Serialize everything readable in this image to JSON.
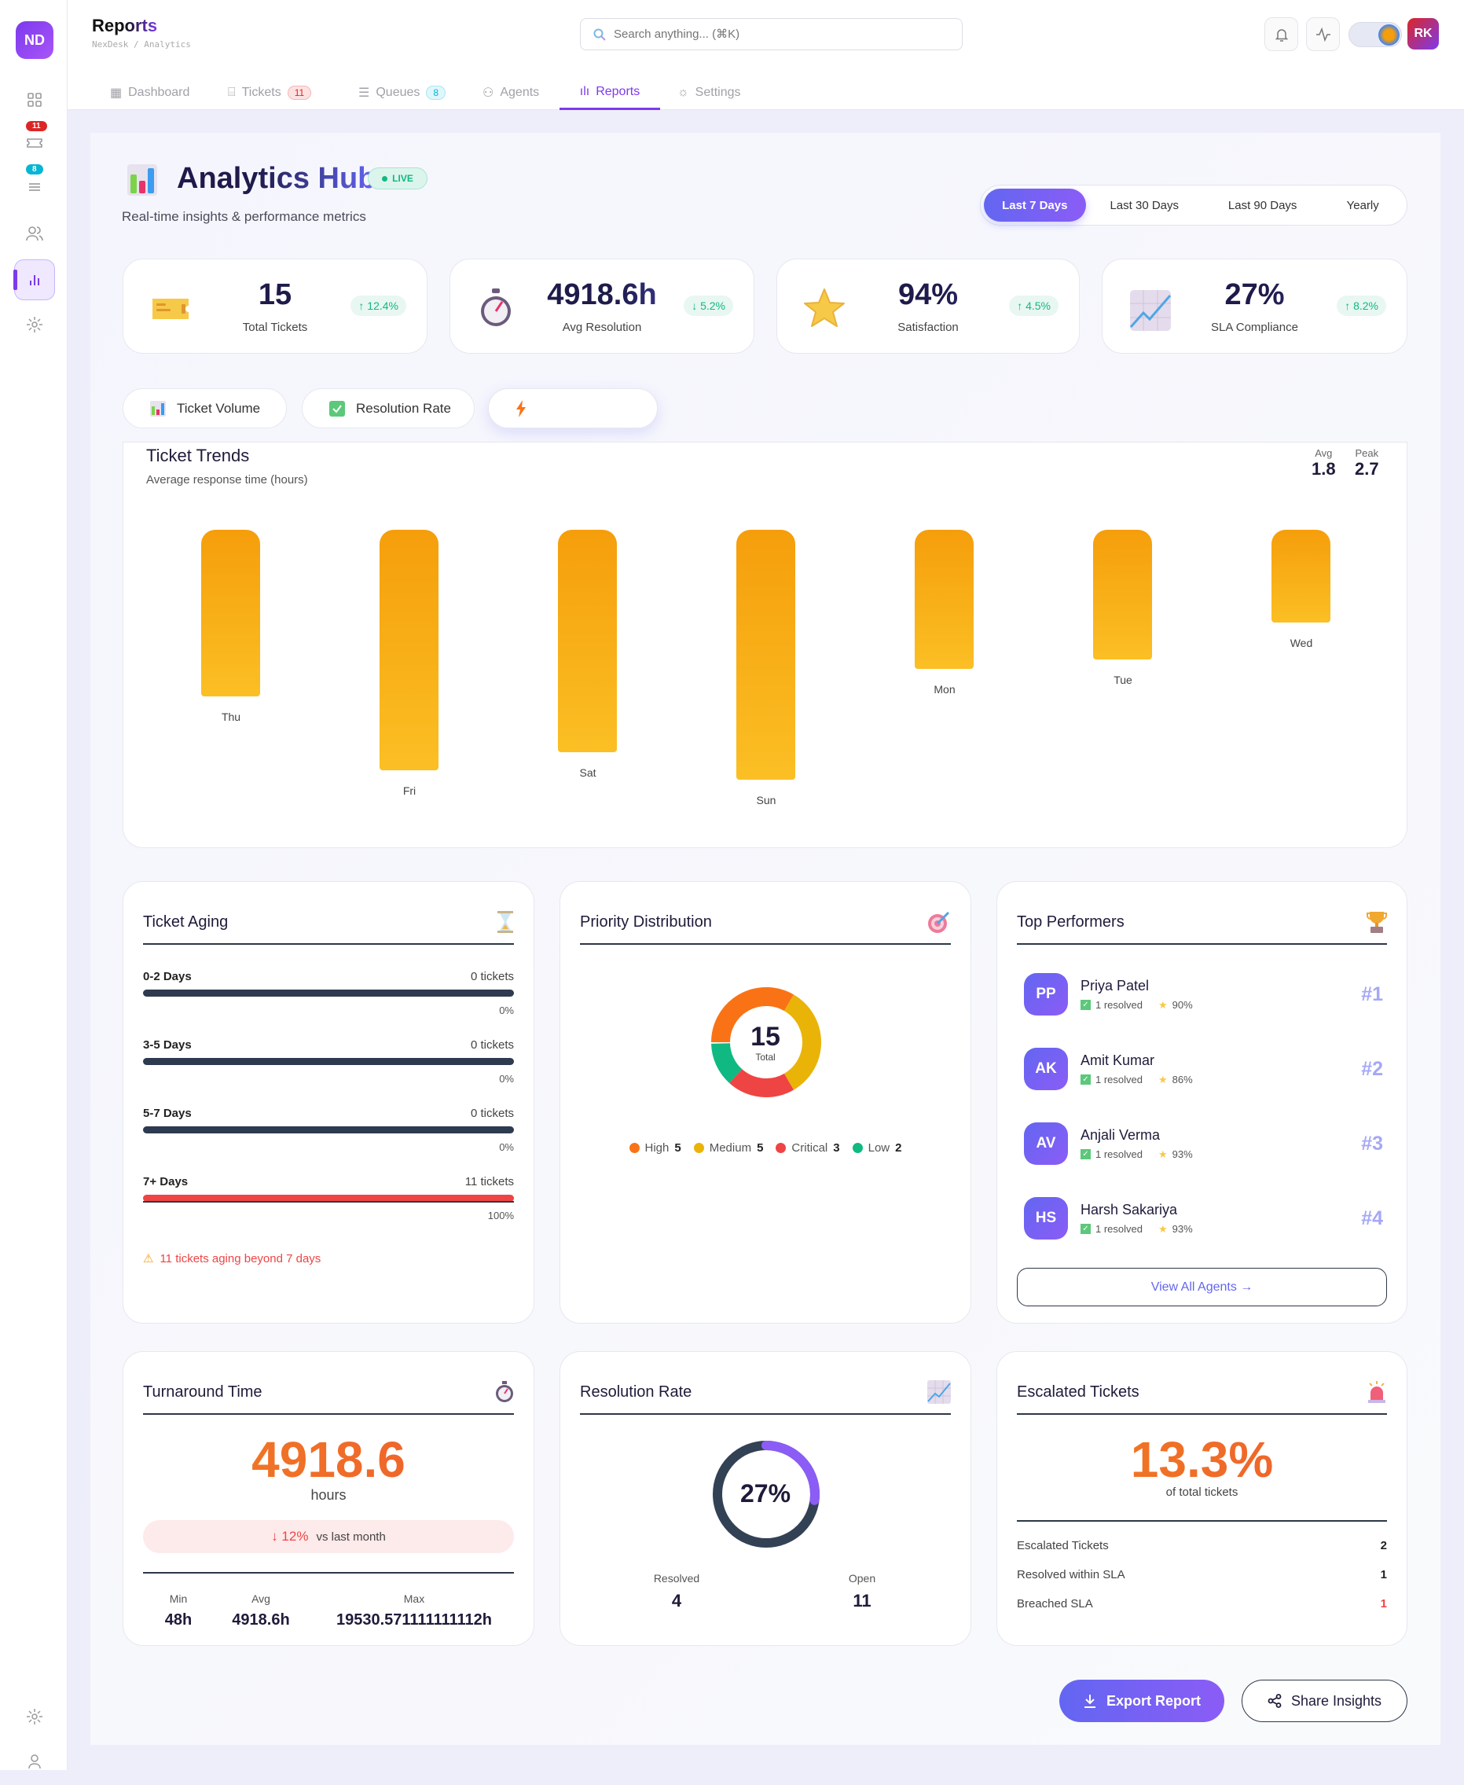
{
  "sidebar": {
    "logo": "ND",
    "tickets_badge": "11",
    "queues_badge": "8"
  },
  "topbar": {
    "title": "Reports",
    "breadcrumb": "NexDesk / Analytics",
    "search_placeholder": "Search anything... (⌘K)",
    "user_initials": "RK"
  },
  "tabs": [
    {
      "label": "Dashboard"
    },
    {
      "label": "Tickets",
      "badge": "11"
    },
    {
      "label": "Queues",
      "badge": "8"
    },
    {
      "label": "Agents"
    },
    {
      "label": "Reports",
      "active": true
    },
    {
      "label": "Settings"
    }
  ],
  "hub": {
    "title": "Analytics Hub",
    "live": "LIVE",
    "subtitle": "Real-time insights & performance metrics"
  },
  "periods": [
    "Last 7 Days",
    "Last 30 Days",
    "Last 90 Days",
    "Yearly"
  ],
  "active_period": "Last 7 Days",
  "kpis": [
    {
      "value": "15",
      "label": "Total Tickets",
      "change": "↑ 12.4%",
      "icon": "ticket-icon"
    },
    {
      "value": "4918.6h",
      "label": "Avg Resolution",
      "change": "↓ 5.2%",
      "icon": "stopwatch-icon"
    },
    {
      "value": "94%",
      "label": "Satisfaction",
      "change": "↑ 4.5%",
      "icon": "star-icon"
    },
    {
      "value": "27%",
      "label": "SLA Compliance",
      "change": "↑ 8.2%",
      "icon": "chart-up-icon"
    }
  ],
  "chart_tabs": [
    "Ticket Volume",
    "Resolution Rate",
    ""
  ],
  "chart_data": {
    "type": "bar",
    "title": "Ticket Trends",
    "subtitle": "Average response time (hours)",
    "categories": [
      "Thu",
      "Fri",
      "Sat",
      "Sun",
      "Mon",
      "Tue",
      "Wed"
    ],
    "values": [
      1.8,
      2.6,
      2.4,
      2.7,
      1.5,
      1.4,
      1.0
    ],
    "stats": {
      "avg_label": "Avg",
      "avg": "1.8",
      "peak_label": "Peak",
      "peak": "2.7"
    },
    "grid": false,
    "colors": [
      "#f59e0b",
      "#fbbf24"
    ]
  },
  "aging": {
    "title": "Ticket Aging",
    "rows": [
      {
        "label": "0-2 Days",
        "count": "0 tickets",
        "pct": "0%",
        "color": "#2d3a4f"
      },
      {
        "label": "3-5 Days",
        "count": "0 tickets",
        "pct": "0%",
        "color": "#2d3a4f"
      },
      {
        "label": "5-7 Days",
        "count": "0 tickets",
        "pct": "0%",
        "color": "#2d3a4f"
      },
      {
        "label": "7+ Days",
        "count": "11 tickets",
        "pct": "100%",
        "color": "#ef4444"
      }
    ],
    "warning": "11 tickets aging beyond 7 days"
  },
  "priority": {
    "title": "Priority Distribution",
    "total": "15",
    "total_label": "Total",
    "items": [
      {
        "name": "High",
        "value": 5,
        "color": "#f97316"
      },
      {
        "name": "Medium",
        "value": 5,
        "color": "#eab308"
      },
      {
        "name": "Critical",
        "value": 3,
        "color": "#ef4444"
      },
      {
        "name": "Low",
        "value": 2,
        "color": "#10b981"
      }
    ]
  },
  "performers": {
    "title": "Top Performers",
    "items": [
      {
        "initials": "PP",
        "name": "Priya Patel",
        "resolved": "1 resolved",
        "score": "90%",
        "rank": "#1"
      },
      {
        "initials": "AK",
        "name": "Amit Kumar",
        "resolved": "1 resolved",
        "score": "86%",
        "rank": "#2"
      },
      {
        "initials": "AV",
        "name": "Anjali Verma",
        "resolved": "1 resolved",
        "score": "93%",
        "rank": "#3"
      },
      {
        "initials": "HS",
        "name": "Harsh Sakariya",
        "resolved": "1 resolved",
        "score": "93%",
        "rank": "#4"
      }
    ],
    "view_all": "View All Agents →"
  },
  "turnaround": {
    "title": "Turnaround Time",
    "value": "4918.6",
    "unit": "hours",
    "change": "↓ 12%",
    "change_label": "vs last month",
    "min_label": "Min",
    "min": "48h",
    "avg_label": "Avg",
    "avg": "4918.6h",
    "max_label": "Max",
    "max": "19530.571111111112h"
  },
  "resolution": {
    "title": "Resolution Rate",
    "percent": 27,
    "percent_label": "27%",
    "resolved_label": "Resolved",
    "resolved": "4",
    "open_label": "Open",
    "open": "11",
    "colors": {
      "progress": "#8b5cf6",
      "track": "#334155"
    }
  },
  "escalated": {
    "title": "Escalated Tickets",
    "value": "13.3%",
    "sub": "of total tickets",
    "rows": [
      {
        "label": "Escalated Tickets",
        "value": "2"
      },
      {
        "label": "Resolved within SLA",
        "value": "1"
      },
      {
        "label": "Breached SLA",
        "value": "1"
      }
    ]
  },
  "actions": {
    "export": "Export Report",
    "share": "Share Insights"
  }
}
